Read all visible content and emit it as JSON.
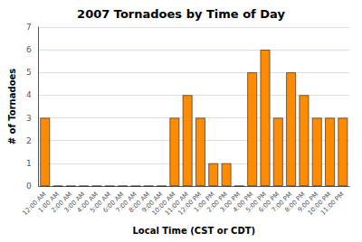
{
  "chart_data": {
    "type": "bar",
    "title": "2007 Tornadoes by Time of Day",
    "xlabel": "Local Time (CST or CDT)",
    "ylabel": "# of Tornadoes",
    "categories": [
      "12:00 AM",
      "1:00 AM",
      "2:00 AM",
      "3:00 AM",
      "4:00 AM",
      "5:00 AM",
      "6:00 AM",
      "7:00 AM",
      "8:00 AM",
      "9:00 AM",
      "10:00 AM",
      "11:00 AM",
      "12:00 PM",
      "1:00 PM",
      "2:00 PM",
      "3:00 PM",
      "4:00 PM",
      "5:00 PM",
      "6:00 PM",
      "7:00 PM",
      "8:00 PM",
      "9:00 PM",
      "10:00 PM",
      "11:00 PM"
    ],
    "values": [
      3,
      0,
      0,
      0,
      0,
      0,
      0,
      0,
      0,
      0,
      3,
      4,
      3,
      1,
      1,
      0,
      5,
      6,
      3,
      5,
      4,
      3,
      3,
      3
    ],
    "color": "#FF8C00",
    "ylim": [
      0,
      7
    ],
    "yticks": [
      0,
      1,
      2,
      3,
      4,
      5,
      6,
      7
    ],
    "grid": true
  }
}
